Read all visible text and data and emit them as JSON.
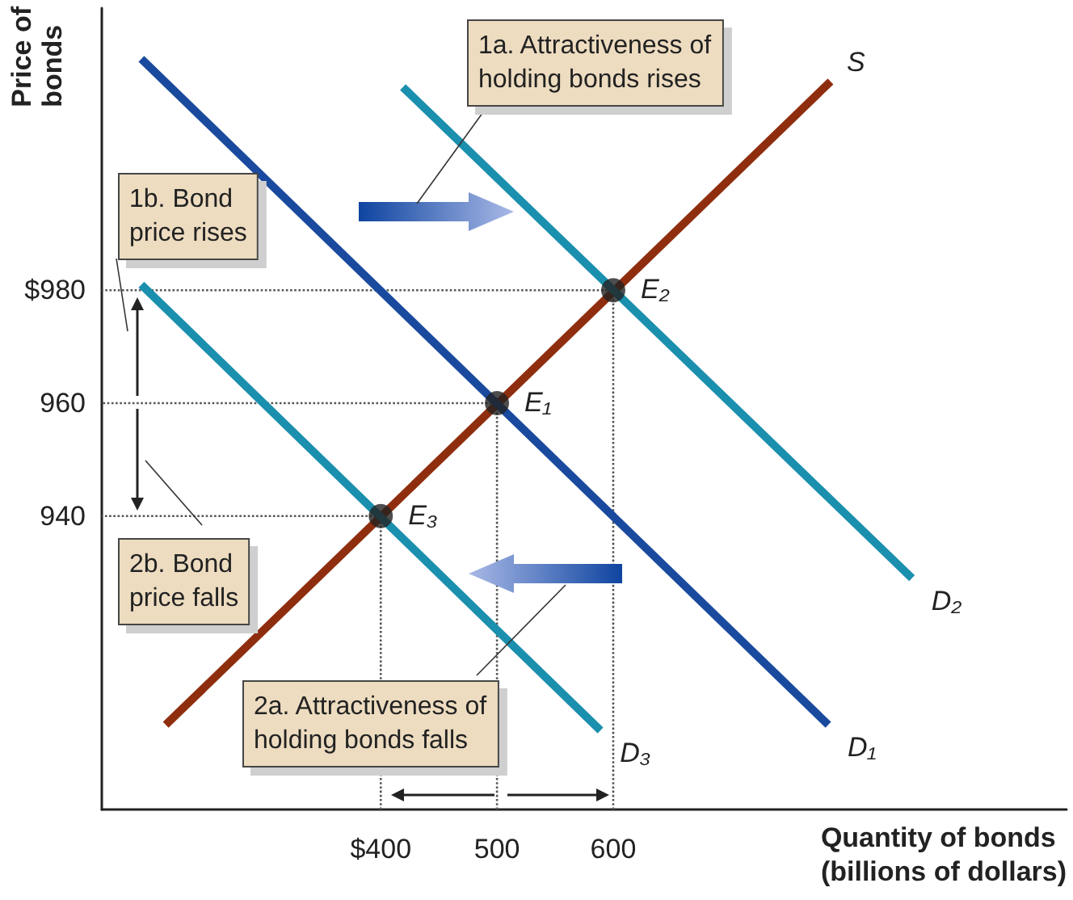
{
  "chart_data": {
    "type": "line",
    "xlabel": "Quantity of bonds\n(billions of dollars)",
    "ylabel": "Price of\nbonds",
    "xlim": [
      160,
      990
    ],
    "ylim": [
      888,
      1030
    ],
    "xticks": [
      {
        "value": 400,
        "label": "$400"
      },
      500,
      600
    ],
    "yticks": [
      940,
      960,
      {
        "value": 980,
        "label": "$980"
      }
    ],
    "grid": false,
    "legend": false,
    "marker": "none",
    "series": [
      {
        "name": "S",
        "color": "#8f2e0e",
        "x": [
          215,
          787
        ],
        "values": [
          903,
          1017
        ]
      },
      {
        "name": "D₁",
        "color": "#1a4a9e",
        "x": [
          194,
          785
        ],
        "values": [
          1021,
          903
        ]
      },
      {
        "name": "D₂",
        "color": "#1b8fae",
        "x": [
          419,
          857
        ],
        "values": [
          1016,
          929
        ]
      },
      {
        "name": "D₃",
        "color": "#1b8fae",
        "x": [
          194,
          589
        ],
        "values": [
          981,
          902
        ]
      },
      {
        "type": "scatter",
        "color": "#222222",
        "marker": "circle",
        "x": [
          600,
          500,
          400
        ],
        "values": [
          980,
          960,
          940
        ]
      },
      {
        "color": "#555555",
        "line_style": "dotted",
        "x": [
          600,
          600,
          160
        ],
        "values": [
          888,
          980,
          980
        ]
      },
      {
        "color": "#555555",
        "line_style": "dotted",
        "x": [
          500,
          500,
          160
        ],
        "values": [
          888,
          960,
          960
        ]
      },
      {
        "color": "#555555",
        "line_style": "dotted",
        "x": [
          400,
          400,
          160
        ],
        "values": [
          888,
          940,
          940
        ]
      }
    ],
    "annotations": [
      {
        "text": "E₂",
        "x": 600,
        "y": 980
      },
      {
        "text": "E₁",
        "x": 500,
        "y": 960
      },
      {
        "text": "E₃",
        "x": 400,
        "y": 940
      },
      "1a. Attractiveness of\nholding bonds rises",
      "1b. Bond\nprice rises",
      "2a. Attractiveness of\nholding bonds falls",
      "2b. Bond\nprice falls"
    ]
  }
}
